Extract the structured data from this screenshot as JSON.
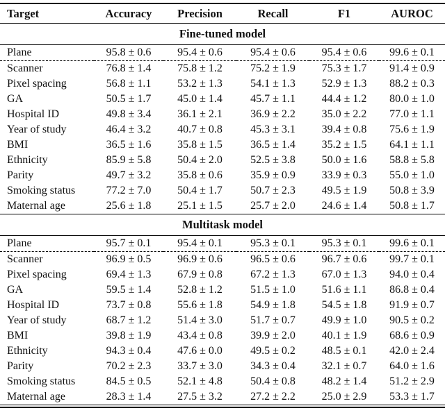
{
  "table": {
    "columns": [
      "Target",
      "Accuracy",
      "Precision",
      "Recall",
      "F1",
      "AUROC"
    ],
    "sections": [
      {
        "title": "Fine-tuned model",
        "rows": [
          {
            "target": "Plane",
            "values": [
              "95.8 ± 0.6",
              "95.4 ± 0.6",
              "95.4 ± 0.6",
              "95.4 ± 0.6",
              "99.6 ± 0.1"
            ]
          },
          {
            "target": "Scanner",
            "values": [
              "76.8 ± 1.4",
              "75.8 ± 1.2",
              "75.2 ± 1.9",
              "75.3 ± 1.7",
              "91.4 ± 0.9"
            ]
          },
          {
            "target": "Pixel spacing",
            "values": [
              "56.8 ± 1.1",
              "53.2 ± 1.3",
              "54.1 ± 1.3",
              "52.9 ± 1.3",
              "88.2 ± 0.3"
            ]
          },
          {
            "target": "GA",
            "values": [
              "50.5 ± 1.7",
              "45.0 ± 1.4",
              "45.7 ± 1.1",
              "44.4 ± 1.2",
              "80.0 ± 1.0"
            ]
          },
          {
            "target": "Hospital ID",
            "values": [
              "49.8 ± 3.4",
              "36.1 ± 2.1",
              "36.9 ± 2.2",
              "35.0 ± 2.2",
              "77.0 ± 1.1"
            ]
          },
          {
            "target": "Year of study",
            "values": [
              "46.4 ± 3.2",
              "40.7 ± 0.8",
              "45.3 ± 3.1",
              "39.4 ± 0.8",
              "75.6 ± 1.9"
            ]
          },
          {
            "target": "BMI",
            "values": [
              "36.5 ± 1.6",
              "35.8 ± 1.5",
              "36.5 ± 1.4",
              "35.2 ± 1.5",
              "64.1 ± 1.1"
            ]
          },
          {
            "target": "Ethnicity",
            "values": [
              "85.9 ± 5.8",
              "50.4 ± 2.0",
              "52.5 ± 3.8",
              "50.0 ± 1.6",
              "58.8 ± 5.8"
            ]
          },
          {
            "target": "Parity",
            "values": [
              "49.7 ± 3.2",
              "35.8 ± 0.6",
              "35.9 ± 0.9",
              "33.9 ± 0.3",
              "55.0 ± 1.0"
            ]
          },
          {
            "target": "Smoking status",
            "values": [
              "77.2 ± 7.0",
              "50.4 ± 1.7",
              "50.7 ± 2.3",
              "49.5 ± 1.9",
              "50.8 ± 3.9"
            ]
          },
          {
            "target": "Maternal age",
            "values": [
              "25.6 ± 1.8",
              "25.1 ± 1.5",
              "25.7 ± 2.0",
              "24.6 ± 1.4",
              "50.8 ± 1.7"
            ]
          }
        ]
      },
      {
        "title": "Multitask model",
        "rows": [
          {
            "target": "Plane",
            "values": [
              "95.7 ± 0.1",
              "95.4 ± 0.1",
              "95.3 ± 0.1",
              "95.3 ± 0.1",
              "99.6 ± 0.1"
            ]
          },
          {
            "target": "Scanner",
            "values": [
              "96.9 ± 0.5",
              "96.9 ± 0.6",
              "96.5 ± 0.6",
              "96.7 ± 0.6",
              "99.7 ± 0.1"
            ]
          },
          {
            "target": "Pixel spacing",
            "values": [
              "69.4 ± 1.3",
              "67.9 ± 0.8",
              "67.2 ± 1.3",
              "67.0 ± 1.3",
              "94.0 ± 0.4"
            ]
          },
          {
            "target": "GA",
            "values": [
              "59.5 ± 1.4",
              "52.8 ± 1.2",
              "51.5 ± 1.0",
              "51.6 ± 1.1",
              "86.8 ± 0.4"
            ]
          },
          {
            "target": "Hospital ID",
            "values": [
              "73.7 ± 0.8",
              "55.6 ± 1.8",
              "54.9 ± 1.8",
              "54.5 ± 1.8",
              "91.9 ± 0.7"
            ]
          },
          {
            "target": "Year of study",
            "values": [
              "68.7 ± 1.2",
              "51.4 ± 3.0",
              "51.7 ± 0.7",
              "49.9 ± 1.0",
              "90.5 ± 0.2"
            ]
          },
          {
            "target": "BMI",
            "values": [
              "39.8 ± 1.9",
              "43.4 ± 0.8",
              "39.9 ± 2.0",
              "40.1 ± 1.9",
              "68.6 ± 0.9"
            ]
          },
          {
            "target": "Ethnicity",
            "values": [
              "94.3 ± 0.4",
              "47.6 ± 0.0",
              "49.5 ± 0.2",
              "48.5 ± 0.1",
              "42.0 ± 2.4"
            ]
          },
          {
            "target": "Parity",
            "values": [
              "70.2 ± 2.3",
              "33.7 ± 3.0",
              "34.3 ± 0.4",
              "32.1 ± 0.7",
              "64.0 ± 1.6"
            ]
          },
          {
            "target": "Smoking status",
            "values": [
              "84.5 ± 0.5",
              "52.1 ± 4.8",
              "50.4 ± 0.8",
              "48.2 ± 1.4",
              "51.2 ± 2.9"
            ]
          },
          {
            "target": "Maternal age",
            "values": [
              "28.3 ± 1.4",
              "27.5 ± 3.2",
              "27.2 ± 2.2",
              "25.0 ± 2.9",
              "53.3 ± 1.7"
            ]
          }
        ]
      }
    ]
  }
}
